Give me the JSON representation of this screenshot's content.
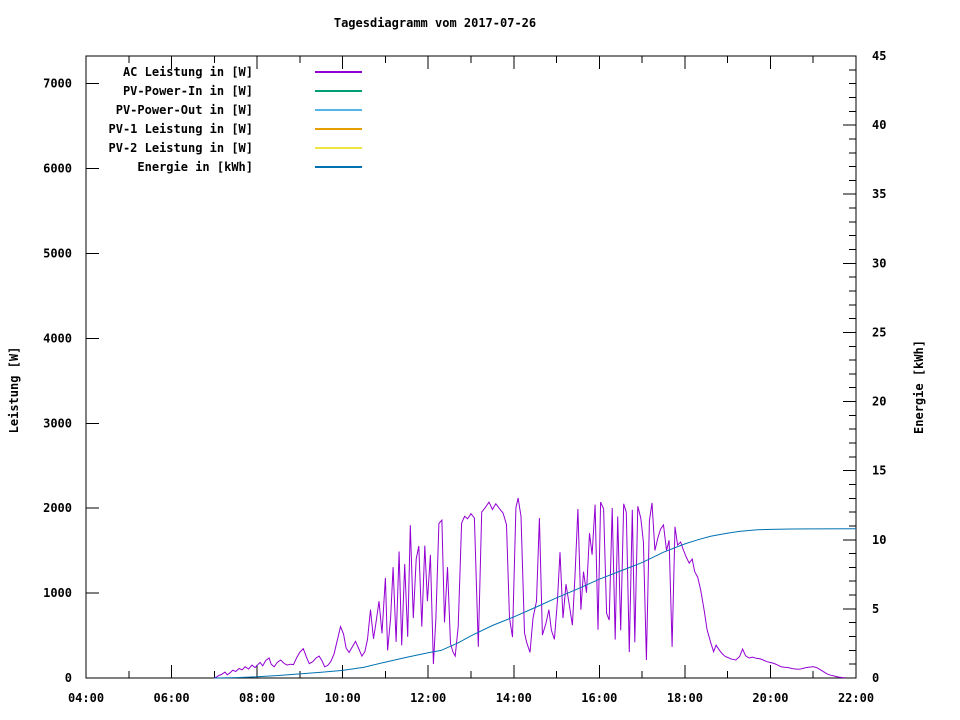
{
  "title": "Tagesdiagramm vom 2017-07-26",
  "chart_data": {
    "type": "line",
    "title": "Tagesdiagramm vom 2017-07-26",
    "axes": {
      "x": {
        "min": 4,
        "max": 22,
        "major_ticks": [
          {
            "v": 4,
            "label": "04:00"
          },
          {
            "v": 6,
            "label": "06:00"
          },
          {
            "v": 8,
            "label": "08:00"
          },
          {
            "v": 10,
            "label": "10:00"
          },
          {
            "v": 12,
            "label": "12:00"
          },
          {
            "v": 14,
            "label": "14:00"
          },
          {
            "v": 16,
            "label": "16:00"
          },
          {
            "v": 18,
            "label": "18:00"
          },
          {
            "v": 20,
            "label": "20:00"
          },
          {
            "v": 22,
            "label": "22:00"
          }
        ],
        "minor_ticks": [
          5,
          7,
          9,
          11,
          13,
          15,
          17,
          19,
          21
        ]
      },
      "y_left": {
        "title": "Leistung [W]",
        "min": 0,
        "max": 7326,
        "major_ticks": [
          {
            "v": 0,
            "label": "0"
          },
          {
            "v": 1000,
            "label": "1000"
          },
          {
            "v": 2000,
            "label": "2000"
          },
          {
            "v": 3000,
            "label": "3000"
          },
          {
            "v": 4000,
            "label": "4000"
          },
          {
            "v": 5000,
            "label": "5000"
          },
          {
            "v": 6000,
            "label": "6000"
          },
          {
            "v": 7000,
            "label": "7000"
          }
        ]
      },
      "y_right": {
        "title": "Energie [kWh]",
        "min": 0,
        "max": 45,
        "minor_step": 1,
        "major_ticks": [
          {
            "v": 0,
            "label": "0"
          },
          {
            "v": 5,
            "label": "5"
          },
          {
            "v": 10,
            "label": "10"
          },
          {
            "v": 15,
            "label": "15"
          },
          {
            "v": 20,
            "label": "20"
          },
          {
            "v": 25,
            "label": "25"
          },
          {
            "v": 30,
            "label": "30"
          },
          {
            "v": 35,
            "label": "35"
          },
          {
            "v": 40,
            "label": "40"
          },
          {
            "v": 45,
            "label": "45"
          }
        ]
      }
    },
    "series": [
      {
        "id": "ac-leistung",
        "name": "AC Leistung in [W]",
        "color": "#9400d3",
        "axis": "y_left",
        "points": [
          [
            7.0,
            0
          ],
          [
            7.05,
            12
          ],
          [
            7.1,
            28
          ],
          [
            7.17,
            42
          ],
          [
            7.25,
            70
          ],
          [
            7.3,
            38
          ],
          [
            7.37,
            62
          ],
          [
            7.43,
            92
          ],
          [
            7.5,
            76
          ],
          [
            7.58,
            112
          ],
          [
            7.65,
            96
          ],
          [
            7.72,
            132
          ],
          [
            7.8,
            106
          ],
          [
            7.88,
            152
          ],
          [
            7.95,
            122
          ],
          [
            8.0,
            150
          ],
          [
            8.07,
            182
          ],
          [
            8.13,
            142
          ],
          [
            8.2,
            205
          ],
          [
            8.28,
            235
          ],
          [
            8.33,
            162
          ],
          [
            8.4,
            132
          ],
          [
            8.47,
            182
          ],
          [
            8.55,
            212
          ],
          [
            8.63,
            172
          ],
          [
            8.7,
            152
          ],
          [
            8.78,
            162
          ],
          [
            8.85,
            158
          ],
          [
            8.92,
            235
          ],
          [
            9.0,
            305
          ],
          [
            9.08,
            345
          ],
          [
            9.15,
            250
          ],
          [
            9.22,
            168
          ],
          [
            9.3,
            192
          ],
          [
            9.38,
            235
          ],
          [
            9.45,
            258
          ],
          [
            9.52,
            200
          ],
          [
            9.58,
            132
          ],
          [
            9.65,
            148
          ],
          [
            9.72,
            192
          ],
          [
            9.8,
            285
          ],
          [
            9.88,
            455
          ],
          [
            9.95,
            605
          ],
          [
            10.02,
            520
          ],
          [
            10.08,
            352
          ],
          [
            10.15,
            302
          ],
          [
            10.22,
            362
          ],
          [
            10.3,
            432
          ],
          [
            10.38,
            342
          ],
          [
            10.45,
            258
          ],
          [
            10.52,
            312
          ],
          [
            10.58,
            455
          ],
          [
            10.65,
            805
          ],
          [
            10.72,
            462
          ],
          [
            10.78,
            655
          ],
          [
            10.85,
            905
          ],
          [
            10.92,
            525
          ],
          [
            11.0,
            1180
          ],
          [
            11.05,
            325
          ],
          [
            11.12,
            705
          ],
          [
            11.18,
            1305
          ],
          [
            11.25,
            425
          ],
          [
            11.32,
            1490
          ],
          [
            11.38,
            385
          ],
          [
            11.45,
            1340
          ],
          [
            11.52,
            485
          ],
          [
            11.58,
            1800
          ],
          [
            11.65,
            705
          ],
          [
            11.72,
            1400
          ],
          [
            11.78,
            1555
          ],
          [
            11.85,
            605
          ],
          [
            11.92,
            1560
          ],
          [
            11.98,
            905
          ],
          [
            12.05,
            1450
          ],
          [
            12.12,
            165
          ],
          [
            12.18,
            705
          ],
          [
            12.25,
            1820
          ],
          [
            12.32,
            1860
          ],
          [
            12.38,
            655
          ],
          [
            12.45,
            1305
          ],
          [
            12.52,
            405
          ],
          [
            12.58,
            305
          ],
          [
            12.63,
            258
          ],
          [
            12.7,
            605
          ],
          [
            12.78,
            1825
          ],
          [
            12.85,
            1905
          ],
          [
            12.92,
            1875
          ],
          [
            13.0,
            1935
          ],
          [
            13.08,
            1885
          ],
          [
            13.17,
            368
          ],
          [
            13.25,
            1955
          ],
          [
            13.33,
            2005
          ],
          [
            13.42,
            2072
          ],
          [
            13.5,
            1985
          ],
          [
            13.58,
            2052
          ],
          [
            13.67,
            1992
          ],
          [
            13.75,
            1942
          ],
          [
            13.83,
            1805
          ],
          [
            13.9,
            705
          ],
          [
            13.97,
            482
          ],
          [
            14.05,
            2005
          ],
          [
            14.1,
            2120
          ],
          [
            14.17,
            1905
          ],
          [
            14.25,
            532
          ],
          [
            14.3,
            422
          ],
          [
            14.38,
            302
          ],
          [
            14.45,
            705
          ],
          [
            14.53,
            905
          ],
          [
            14.6,
            1882
          ],
          [
            14.67,
            505
          ],
          [
            14.75,
            642
          ],
          [
            14.82,
            805
          ],
          [
            14.88,
            562
          ],
          [
            14.95,
            455
          ],
          [
            15.02,
            905
          ],
          [
            15.08,
            1482
          ],
          [
            15.15,
            705
          ],
          [
            15.22,
            1105
          ],
          [
            15.3,
            852
          ],
          [
            15.37,
            622
          ],
          [
            15.43,
            1205
          ],
          [
            15.5,
            1990
          ],
          [
            15.57,
            805
          ],
          [
            15.63,
            1252
          ],
          [
            15.7,
            1005
          ],
          [
            15.77,
            1705
          ],
          [
            15.83,
            1452
          ],
          [
            15.9,
            2042
          ],
          [
            15.97,
            568
          ],
          [
            16.03,
            2072
          ],
          [
            16.1,
            1992
          ],
          [
            16.17,
            762
          ],
          [
            16.23,
            682
          ],
          [
            16.3,
            2002
          ],
          [
            16.37,
            452
          ],
          [
            16.43,
            1902
          ],
          [
            16.5,
            562
          ],
          [
            16.57,
            2052
          ],
          [
            16.63,
            1952
          ],
          [
            16.7,
            305
          ],
          [
            16.77,
            1982
          ],
          [
            16.83,
            422
          ],
          [
            16.9,
            2022
          ],
          [
            16.97,
            1882
          ],
          [
            17.03,
            1602
          ],
          [
            17.1,
            212
          ],
          [
            17.17,
            1852
          ],
          [
            17.23,
            2062
          ],
          [
            17.3,
            1502
          ],
          [
            17.37,
            1652
          ],
          [
            17.43,
            1752
          ],
          [
            17.5,
            1802
          ],
          [
            17.57,
            1502
          ],
          [
            17.63,
            1622
          ],
          [
            17.7,
            368
          ],
          [
            17.77,
            1782
          ],
          [
            17.83,
            1565
          ],
          [
            17.9,
            1602
          ],
          [
            17.97,
            1502
          ],
          [
            18.03,
            1425
          ],
          [
            18.1,
            1352
          ],
          [
            18.17,
            1402
          ],
          [
            18.23,
            1252
          ],
          [
            18.3,
            1188
          ],
          [
            18.37,
            1035
          ],
          [
            18.45,
            802
          ],
          [
            18.52,
            568
          ],
          [
            18.6,
            422
          ],
          [
            18.67,
            310
          ],
          [
            18.73,
            388
          ],
          [
            18.8,
            332
          ],
          [
            18.88,
            282
          ],
          [
            18.95,
            252
          ],
          [
            19.03,
            236
          ],
          [
            19.1,
            222
          ],
          [
            19.19,
            212
          ],
          [
            19.28,
            252
          ],
          [
            19.35,
            342
          ],
          [
            19.42,
            262
          ],
          [
            19.5,
            236
          ],
          [
            19.58,
            246
          ],
          [
            19.67,
            232
          ],
          [
            19.75,
            226
          ],
          [
            19.83,
            212
          ],
          [
            19.92,
            192
          ],
          [
            20.0,
            182
          ],
          [
            20.08,
            172
          ],
          [
            20.17,
            152
          ],
          [
            20.25,
            132
          ],
          [
            20.33,
            126
          ],
          [
            20.42,
            122
          ],
          [
            20.5,
            112
          ],
          [
            20.58,
            106
          ],
          [
            20.67,
            102
          ],
          [
            20.75,
            112
          ],
          [
            20.83,
            122
          ],
          [
            20.92,
            128
          ],
          [
            21.0,
            134
          ],
          [
            21.08,
            122
          ],
          [
            21.17,
            96
          ],
          [
            21.25,
            72
          ],
          [
            21.33,
            46
          ],
          [
            21.42,
            32
          ],
          [
            21.5,
            22
          ],
          [
            21.58,
            12
          ],
          [
            21.67,
            6
          ],
          [
            21.75,
            2
          ]
        ]
      },
      {
        "id": "pv-power-in",
        "name": "PV-Power-In in [W]",
        "color": "#009e73",
        "axis": "y_left",
        "points": []
      },
      {
        "id": "pv-power-out",
        "name": "PV-Power-Out in [W]",
        "color": "#56b4e9",
        "axis": "y_left",
        "points": []
      },
      {
        "id": "pv-1-leistung",
        "name": "PV-1 Leistung in [W]",
        "color": "#e69f00",
        "axis": "y_left",
        "points": []
      },
      {
        "id": "pv-2-leistung",
        "name": "PV-2 Leistung in [W]",
        "color": "#f0e442",
        "axis": "y_left",
        "points": []
      },
      {
        "id": "energie",
        "name": "Energie in [kWh]",
        "color": "#0072b2",
        "axis": "y_right",
        "points": [
          [
            7.0,
            0
          ],
          [
            7.5,
            0.03
          ],
          [
            8.0,
            0.09
          ],
          [
            8.5,
            0.18
          ],
          [
            9.0,
            0.3
          ],
          [
            9.5,
            0.42
          ],
          [
            10.0,
            0.55
          ],
          [
            10.5,
            0.78
          ],
          [
            11.0,
            1.15
          ],
          [
            11.5,
            1.5
          ],
          [
            12.0,
            1.82
          ],
          [
            12.3,
            2.0
          ],
          [
            12.7,
            2.55
          ],
          [
            13.0,
            3.05
          ],
          [
            13.5,
            3.8
          ],
          [
            14.0,
            4.42
          ],
          [
            14.5,
            5.1
          ],
          [
            15.0,
            5.8
          ],
          [
            15.5,
            6.45
          ],
          [
            16.0,
            7.15
          ],
          [
            16.5,
            7.75
          ],
          [
            17.0,
            8.35
          ],
          [
            17.5,
            9.1
          ],
          [
            18.0,
            9.7
          ],
          [
            18.3,
            10.0
          ],
          [
            18.6,
            10.25
          ],
          [
            19.0,
            10.48
          ],
          [
            19.3,
            10.62
          ],
          [
            19.7,
            10.72
          ],
          [
            20.0,
            10.75
          ],
          [
            20.5,
            10.78
          ],
          [
            21.0,
            10.79
          ],
          [
            22.0,
            10.8
          ]
        ]
      }
    ]
  }
}
